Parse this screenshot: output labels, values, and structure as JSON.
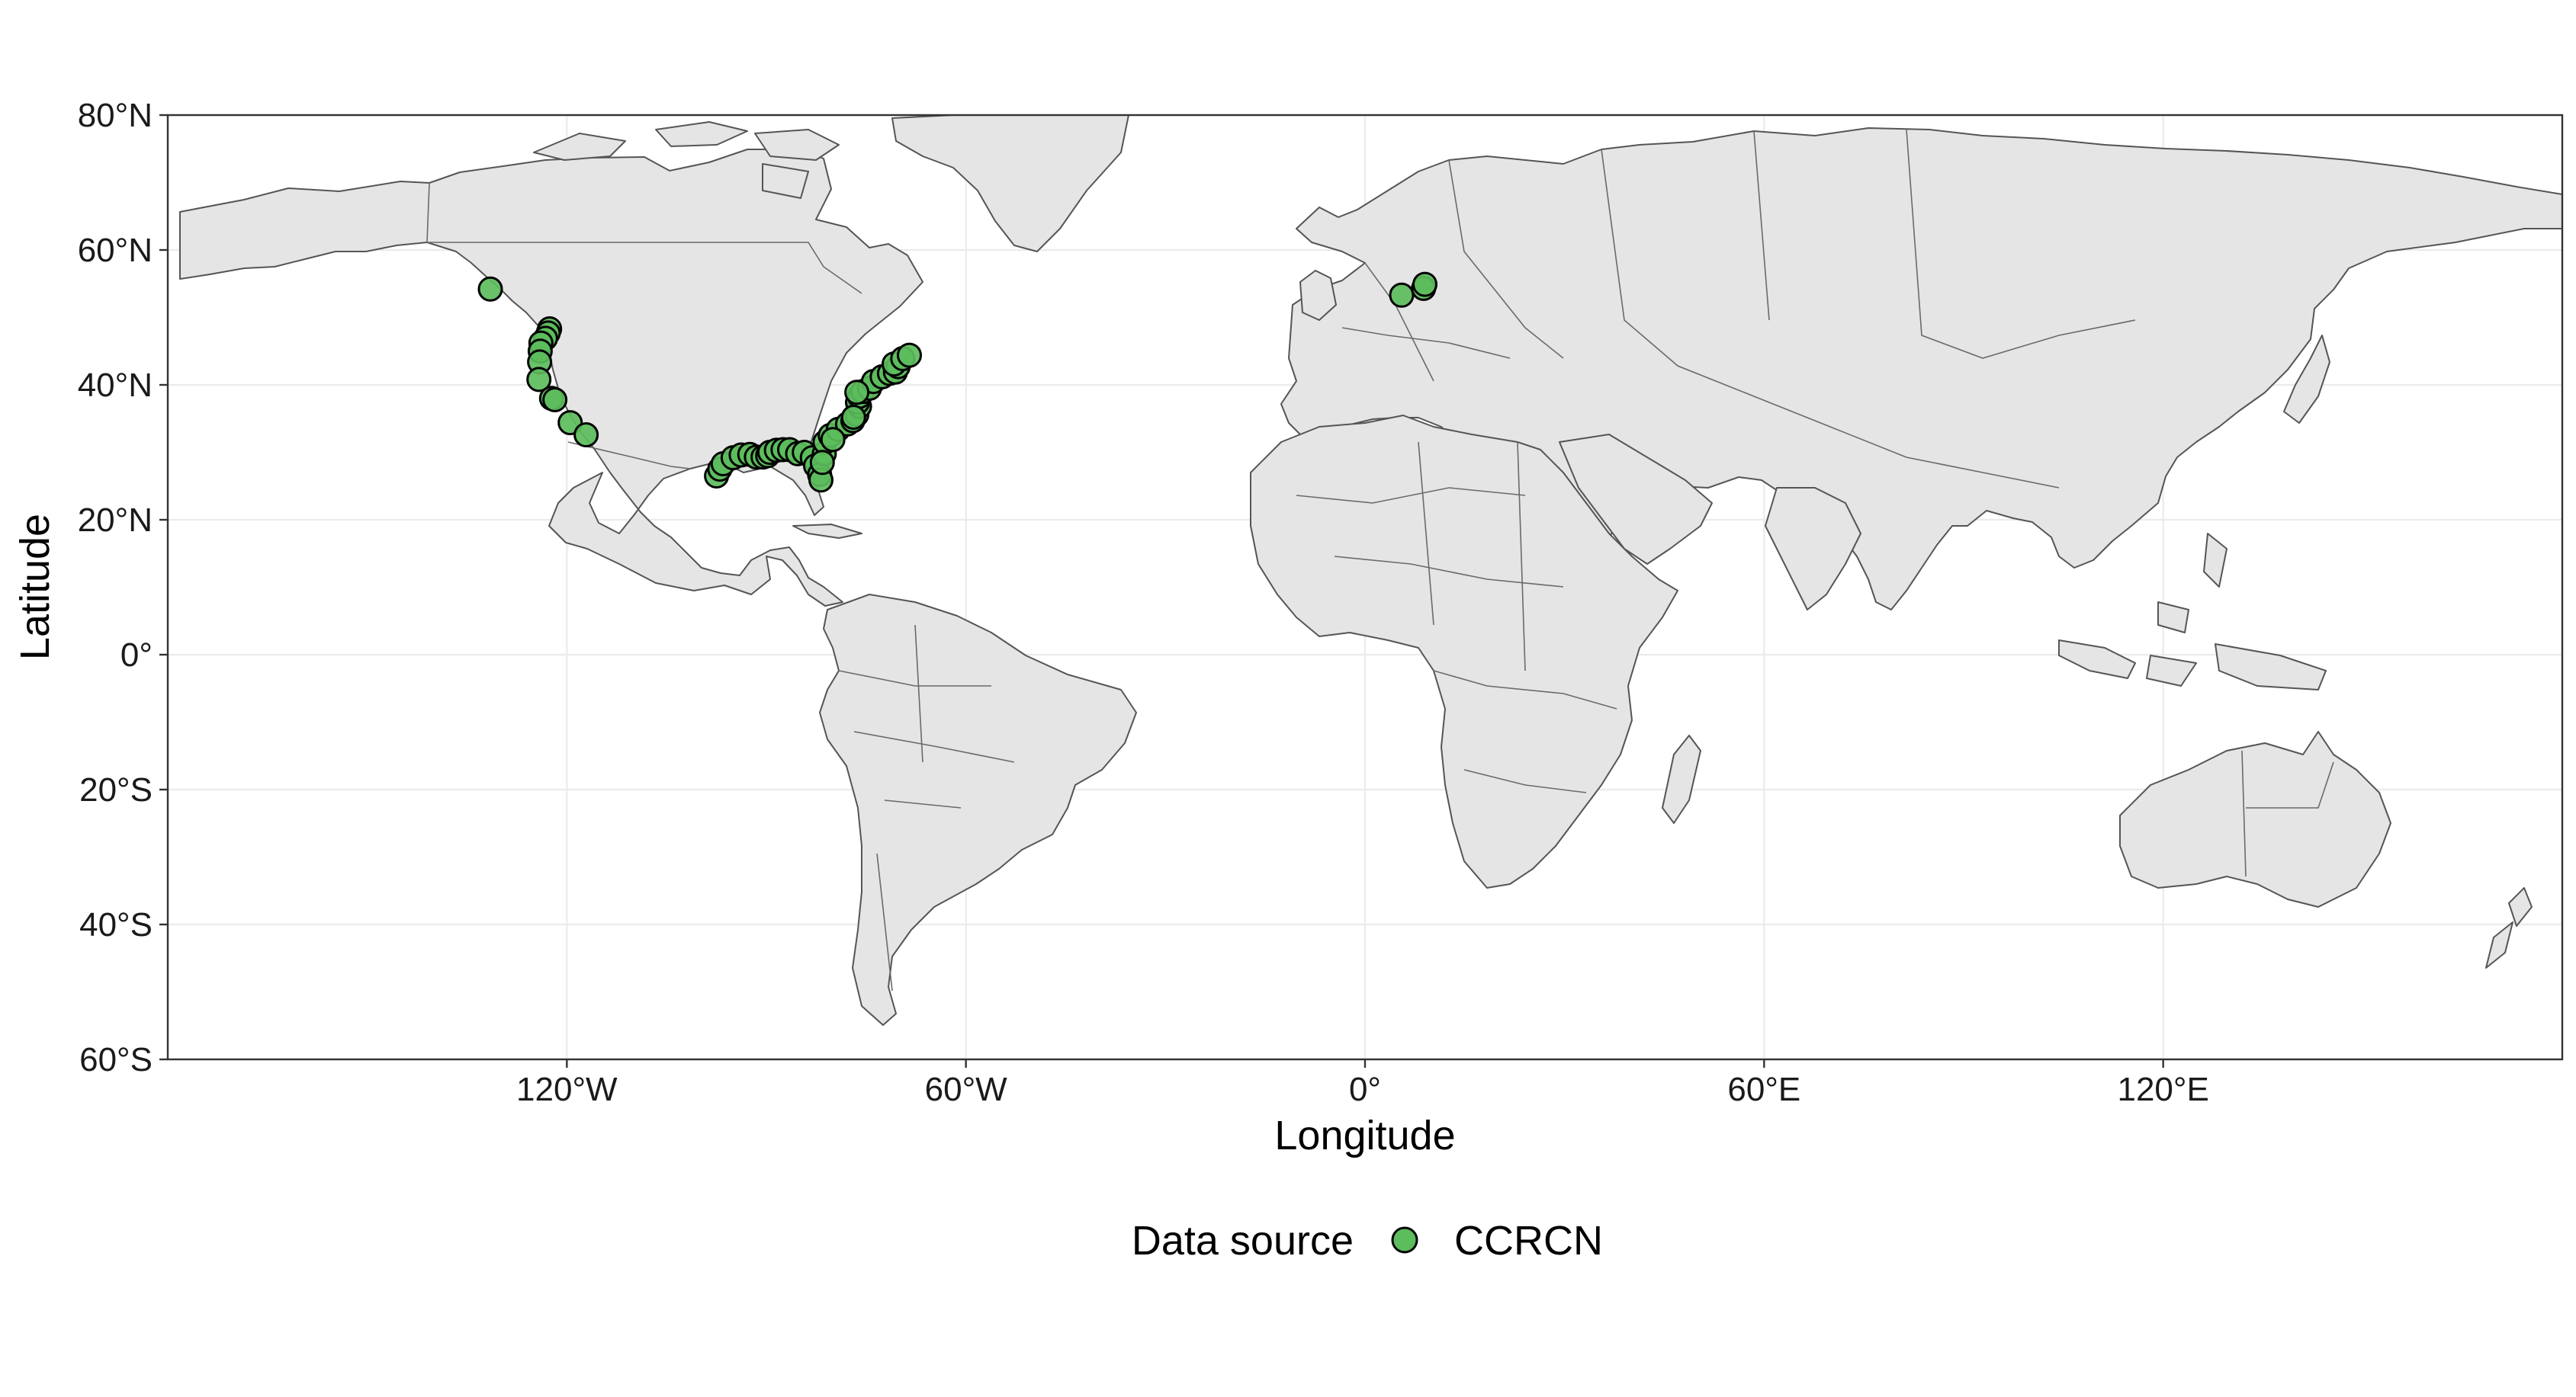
{
  "map": {
    "x_axis": {
      "title": "Longitude",
      "range": [
        -180,
        180
      ],
      "ticks": [
        {
          "value": -120,
          "label": "120°W"
        },
        {
          "value": -60,
          "label": "60°W"
        },
        {
          "value": 0,
          "label": "0°"
        },
        {
          "value": 60,
          "label": "60°E"
        },
        {
          "value": 120,
          "label": "120°E"
        }
      ]
    },
    "y_axis": {
      "title": "Latitude",
      "range": [
        -60,
        80
      ],
      "ticks": [
        {
          "value": 80,
          "label": "80°N"
        },
        {
          "value": 60,
          "label": "60°N"
        },
        {
          "value": 40,
          "label": "40°N"
        },
        {
          "value": 20,
          "label": "20°N"
        },
        {
          "value": 0,
          "label": "0°"
        },
        {
          "value": -20,
          "label": "20°S"
        },
        {
          "value": -40,
          "label": "40°S"
        },
        {
          "value": -60,
          "label": "60°S"
        }
      ]
    },
    "grid": true,
    "background": "white",
    "land_color": "#e5e5e5",
    "border_color": "#555555",
    "legend": {
      "position": "bottom",
      "title": "Data source",
      "entries": [
        {
          "label": "CCRCN",
          "color": "#5cbd5c"
        }
      ]
    },
    "series": [
      {
        "name": "CCRCN",
        "color": "#5cbd5c",
        "points": [
          [
            -131.5,
            54.2
          ],
          [
            -122.6,
            48.3
          ],
          [
            -122.8,
            47.7
          ],
          [
            -123.2,
            46.9
          ],
          [
            -123.9,
            46.2
          ],
          [
            -124.0,
            45.0
          ],
          [
            -124.1,
            43.4
          ],
          [
            -124.2,
            40.8
          ],
          [
            -122.3,
            38.0
          ],
          [
            -121.8,
            37.8
          ],
          [
            -119.5,
            34.4
          ],
          [
            -117.1,
            32.6
          ],
          [
            -97.5,
            26.5
          ],
          [
            -97.0,
            27.5
          ],
          [
            -96.5,
            28.3
          ],
          [
            -95.0,
            29.2
          ],
          [
            -93.8,
            29.6
          ],
          [
            -92.5,
            29.7
          ],
          [
            -91.5,
            29.3
          ],
          [
            -90.5,
            29.3
          ],
          [
            -89.8,
            29.5
          ],
          [
            -89.5,
            30.0
          ],
          [
            -88.5,
            30.3
          ],
          [
            -87.5,
            30.4
          ],
          [
            -86.5,
            30.4
          ],
          [
            -85.3,
            29.8
          ],
          [
            -84.3,
            30.0
          ],
          [
            -83.1,
            29.2
          ],
          [
            -82.6,
            28.0
          ],
          [
            -82.0,
            26.7
          ],
          [
            -81.8,
            25.9
          ],
          [
            -81.3,
            29.8
          ],
          [
            -81.2,
            31.5
          ],
          [
            -80.4,
            32.5
          ],
          [
            -79.2,
            33.4
          ],
          [
            -77.8,
            34.2
          ],
          [
            -77.0,
            34.7
          ],
          [
            -76.4,
            35.6
          ],
          [
            -76.0,
            36.8
          ],
          [
            -76.3,
            37.4
          ],
          [
            -76.0,
            38.3
          ],
          [
            -75.5,
            39.0
          ],
          [
            -74.5,
            39.5
          ],
          [
            -73.9,
            40.5
          ],
          [
            -72.6,
            41.2
          ],
          [
            -71.5,
            41.7
          ],
          [
            -70.6,
            41.9
          ],
          [
            -70.2,
            42.7
          ],
          [
            -70.8,
            43.1
          ],
          [
            -69.5,
            43.9
          ],
          [
            -68.5,
            44.4
          ],
          [
            -76.4,
            38.9
          ],
          [
            -76.9,
            35.2
          ],
          [
            -80.0,
            31.9
          ],
          [
            -81.6,
            28.5
          ],
          [
            5.5,
            53.3
          ],
          [
            8.8,
            54.3
          ],
          [
            9.0,
            54.9
          ]
        ]
      }
    ]
  }
}
